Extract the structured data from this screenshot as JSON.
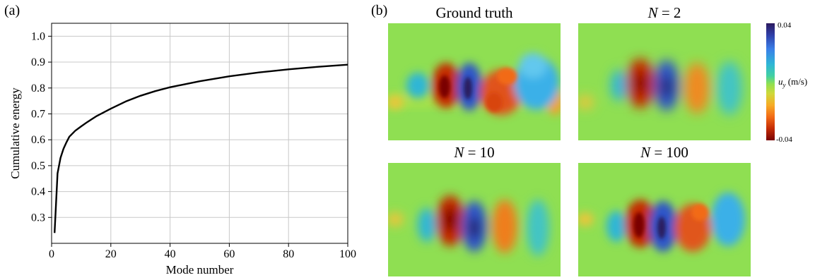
{
  "panel_a_label": "(a)",
  "panel_b_label": "(b)",
  "chart_data": [
    {
      "type": "line",
      "xlabel": "Mode number",
      "ylabel": "Cumulative energy",
      "xlim": [
        0,
        100
      ],
      "ylim": [
        0.2,
        1.05
      ],
      "xticks": [
        "0",
        "20",
        "40",
        "60",
        "80",
        "100"
      ],
      "yticks": [
        "0.3",
        "0.4",
        "0.5",
        "0.6",
        "0.7",
        "0.8",
        "0.9",
        "1.0"
      ],
      "grid": true,
      "series": [
        {
          "x": [
            1,
            2,
            3,
            4,
            5,
            6,
            8,
            10,
            12,
            15,
            20,
            25,
            30,
            35,
            40,
            50,
            60,
            70,
            80,
            90,
            100
          ],
          "y": [
            0.24,
            0.47,
            0.53,
            0.565,
            0.59,
            0.612,
            0.635,
            0.652,
            0.668,
            0.69,
            0.72,
            0.748,
            0.77,
            0.788,
            0.803,
            0.826,
            0.845,
            0.86,
            0.872,
            0.882,
            0.89
          ]
        }
      ]
    },
    {
      "type": "heatmap",
      "panels": [
        {
          "title": "Ground truth",
          "title_n": ""
        },
        {
          "title": "N = 2",
          "title_n": "2"
        },
        {
          "title": "N = 10",
          "title_n": "10"
        },
        {
          "title": "N = 100",
          "title_n": "100"
        }
      ],
      "colorbar": {
        "label": "u_y (m/s)",
        "max_label": "0.04",
        "min_label": "-0.04",
        "range": [
          -0.04,
          0.04
        ]
      }
    }
  ],
  "heatmap_text": {
    "gt_title": "Ground truth",
    "n_prefix": "N",
    "n_eq": " = ",
    "n2": "2",
    "n10": "10",
    "n100": "100",
    "cbar_max": "0.04",
    "cbar_min": "-0.04",
    "cbar_var": "u",
    "cbar_sub": "y",
    "cbar_unit": " (m/s)"
  }
}
